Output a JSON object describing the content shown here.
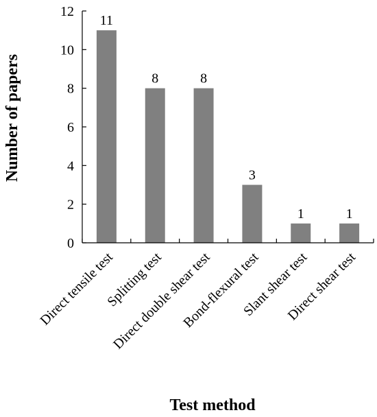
{
  "chart_data": {
    "type": "bar",
    "title": "",
    "xlabel": "Test method",
    "ylabel": "Number of papers",
    "categories": [
      "Direct tensile test",
      "Splitting test",
      "Direct double shear test",
      "Bond-flexural test",
      "Slant shear test",
      "Direct shear test"
    ],
    "values": [
      11,
      8,
      8,
      3,
      1,
      1
    ],
    "data_labels": [
      "11",
      "8",
      "8",
      "3",
      "1",
      "1"
    ],
    "ylim": [
      0,
      12
    ],
    "yticks": [
      "0",
      "2",
      "4",
      "6",
      "8",
      "10",
      "12"
    ],
    "grid": false,
    "legend": "none",
    "bar_color": "#808080"
  }
}
